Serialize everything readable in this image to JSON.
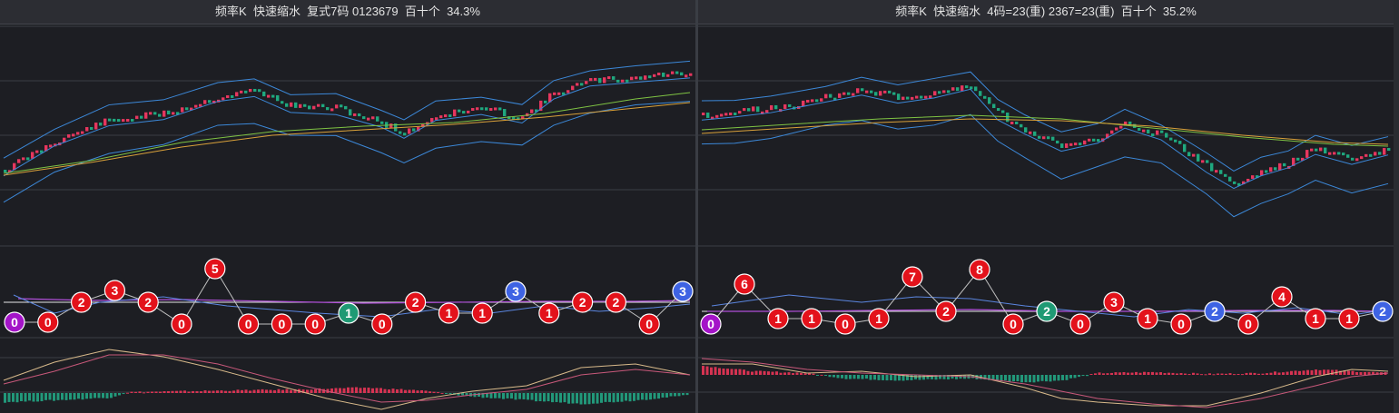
{
  "colors": {
    "background": "#1d1e23",
    "gridline": "#3b3d44",
    "candle_up": "#e6365e",
    "candle_down": "#1fa87f",
    "ma_yellow": "#d9a13a",
    "ma_green": "#7fc343",
    "boll_blue": "#3c88d8",
    "ball_red": "#e3121b",
    "ball_blue": "#3e63e3",
    "ball_green": "#1f9a74",
    "ball_purple": "#a414c8",
    "macd_pos": "#d63352",
    "macd_neg": "#22987a"
  },
  "left_panel": {
    "title": "频率K  快速缩水  复式7码 0123679  百十个  34.3%",
    "balls": [
      {
        "value": "0",
        "color": "purple"
      },
      {
        "value": "0",
        "color": "red"
      },
      {
        "value": "2",
        "color": "red"
      },
      {
        "value": "3",
        "color": "red"
      },
      {
        "value": "2",
        "color": "red"
      },
      {
        "value": "0",
        "color": "red"
      },
      {
        "value": "5",
        "color": "red"
      },
      {
        "value": "0",
        "color": "red"
      },
      {
        "value": "0",
        "color": "red"
      },
      {
        "value": "0",
        "color": "red"
      },
      {
        "value": "1",
        "color": "green"
      },
      {
        "value": "0",
        "color": "red"
      },
      {
        "value": "2",
        "color": "red"
      },
      {
        "value": "1",
        "color": "red"
      },
      {
        "value": "1",
        "color": "red"
      },
      {
        "value": "3",
        "color": "blue"
      },
      {
        "value": "1",
        "color": "red"
      },
      {
        "value": "2",
        "color": "red"
      },
      {
        "value": "2",
        "color": "red"
      },
      {
        "value": "0",
        "color": "red"
      },
      {
        "value": "3",
        "color": "blue"
      }
    ]
  },
  "right_panel": {
    "title": "频率K  快速缩水  4码=23(重) 2367=23(重)  百十个  35.2%",
    "balls": [
      {
        "value": "0",
        "color": "purple"
      },
      {
        "value": "6",
        "color": "red"
      },
      {
        "value": "1",
        "color": "red"
      },
      {
        "value": "1",
        "color": "red"
      },
      {
        "value": "0",
        "color": "red"
      },
      {
        "value": "1",
        "color": "red"
      },
      {
        "value": "7",
        "color": "red"
      },
      {
        "value": "2",
        "color": "red"
      },
      {
        "value": "8",
        "color": "red"
      },
      {
        "value": "0",
        "color": "red"
      },
      {
        "value": "2",
        "color": "green"
      },
      {
        "value": "0",
        "color": "red"
      },
      {
        "value": "3",
        "color": "red"
      },
      {
        "value": "1",
        "color": "red"
      },
      {
        "value": "0",
        "color": "red"
      },
      {
        "value": "2",
        "color": "blue"
      },
      {
        "value": "0",
        "color": "red"
      },
      {
        "value": "4",
        "color": "red"
      },
      {
        "value": "1",
        "color": "red"
      },
      {
        "value": "1",
        "color": "red"
      },
      {
        "value": "2",
        "color": "blue"
      }
    ]
  }
}
